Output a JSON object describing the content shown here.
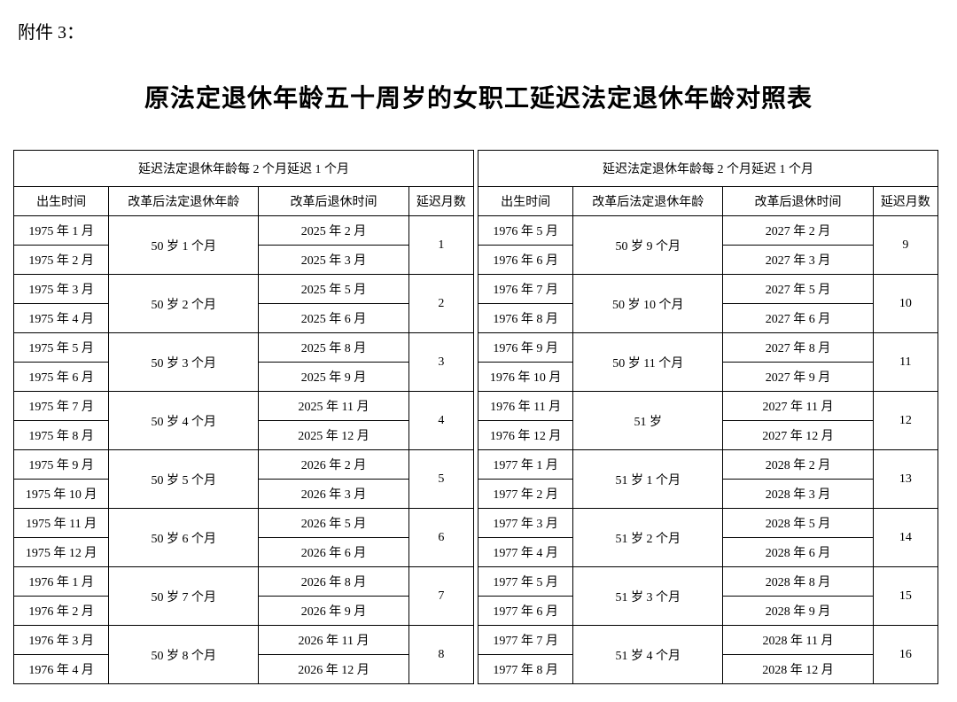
{
  "attachment_label": "附件 3：",
  "title": "原法定退休年龄五十周岁的女职工延迟法定退休年龄对照表",
  "group_header": "延迟法定退休年龄每 2 个月延迟 1 个月",
  "columns": {
    "birth": "出生时间",
    "age": "改革后法定退休年龄",
    "retire": "改革后退休时间",
    "delay": "延迟月数"
  },
  "left": [
    {
      "birth1": "1975 年 1 月",
      "birth2": "1975 年 2 月",
      "age": "50 岁 1 个月",
      "retire1": "2025 年 2 月",
      "retire2": "2025 年 3 月",
      "delay": "1"
    },
    {
      "birth1": "1975 年 3 月",
      "birth2": "1975 年 4 月",
      "age": "50 岁 2 个月",
      "retire1": "2025 年 5 月",
      "retire2": "2025 年 6 月",
      "delay": "2"
    },
    {
      "birth1": "1975 年 5 月",
      "birth2": "1975 年 6 月",
      "age": "50 岁 3 个月",
      "retire1": "2025 年 8 月",
      "retire2": "2025 年 9 月",
      "delay": "3"
    },
    {
      "birth1": "1975 年 7 月",
      "birth2": "1975 年 8 月",
      "age": "50 岁 4 个月",
      "retire1": "2025 年 11 月",
      "retire2": "2025 年 12 月",
      "delay": "4"
    },
    {
      "birth1": "1975 年 9 月",
      "birth2": "1975 年 10 月",
      "age": "50 岁 5 个月",
      "retire1": "2026 年 2 月",
      "retire2": "2026 年 3 月",
      "delay": "5"
    },
    {
      "birth1": "1975 年 11 月",
      "birth2": "1975 年 12 月",
      "age": "50 岁 6 个月",
      "retire1": "2026 年 5 月",
      "retire2": "2026 年 6 月",
      "delay": "6"
    },
    {
      "birth1": "1976 年 1 月",
      "birth2": "1976 年 2 月",
      "age": "50 岁 7 个月",
      "retire1": "2026 年 8 月",
      "retire2": "2026 年 9 月",
      "delay": "7"
    },
    {
      "birth1": "1976 年 3 月",
      "birth2": "1976 年 4 月",
      "age": "50 岁 8 个月",
      "retire1": "2026 年 11 月",
      "retire2": "2026 年 12 月",
      "delay": "8"
    }
  ],
  "right": [
    {
      "birth1": "1976 年 5 月",
      "birth2": "1976 年 6 月",
      "age": "50 岁 9 个月",
      "retire1": "2027 年 2 月",
      "retire2": "2027 年 3 月",
      "delay": "9"
    },
    {
      "birth1": "1976 年 7 月",
      "birth2": "1976 年 8 月",
      "age": "50 岁 10 个月",
      "retire1": "2027 年 5 月",
      "retire2": "2027 年 6 月",
      "delay": "10"
    },
    {
      "birth1": "1976 年 9 月",
      "birth2": "1976 年 10 月",
      "age": "50 岁 11 个月",
      "retire1": "2027 年 8 月",
      "retire2": "2027 年 9 月",
      "delay": "11"
    },
    {
      "birth1": "1976 年 11 月",
      "birth2": "1976 年 12 月",
      "age": "51 岁",
      "retire1": "2027 年 11 月",
      "retire2": "2027 年 12 月",
      "delay": "12"
    },
    {
      "birth1": "1977 年 1 月",
      "birth2": "1977 年 2 月",
      "age": "51 岁 1 个月",
      "retire1": "2028 年 2 月",
      "retire2": "2028 年 3 月",
      "delay": "13"
    },
    {
      "birth1": "1977 年 3 月",
      "birth2": "1977 年 4 月",
      "age": "51 岁 2 个月",
      "retire1": "2028 年 5 月",
      "retire2": "2028 年 6 月",
      "delay": "14"
    },
    {
      "birth1": "1977 年 5 月",
      "birth2": "1977 年 6 月",
      "age": "51 岁 3 个月",
      "retire1": "2028 年 8 月",
      "retire2": "2028 年 9 月",
      "delay": "15"
    },
    {
      "birth1": "1977 年 7 月",
      "birth2": "1977 年 8 月",
      "age": "51 岁 4 个月",
      "retire1": "2028 年 11 月",
      "retire2": "2028 年 12 月",
      "delay": "16"
    }
  ]
}
